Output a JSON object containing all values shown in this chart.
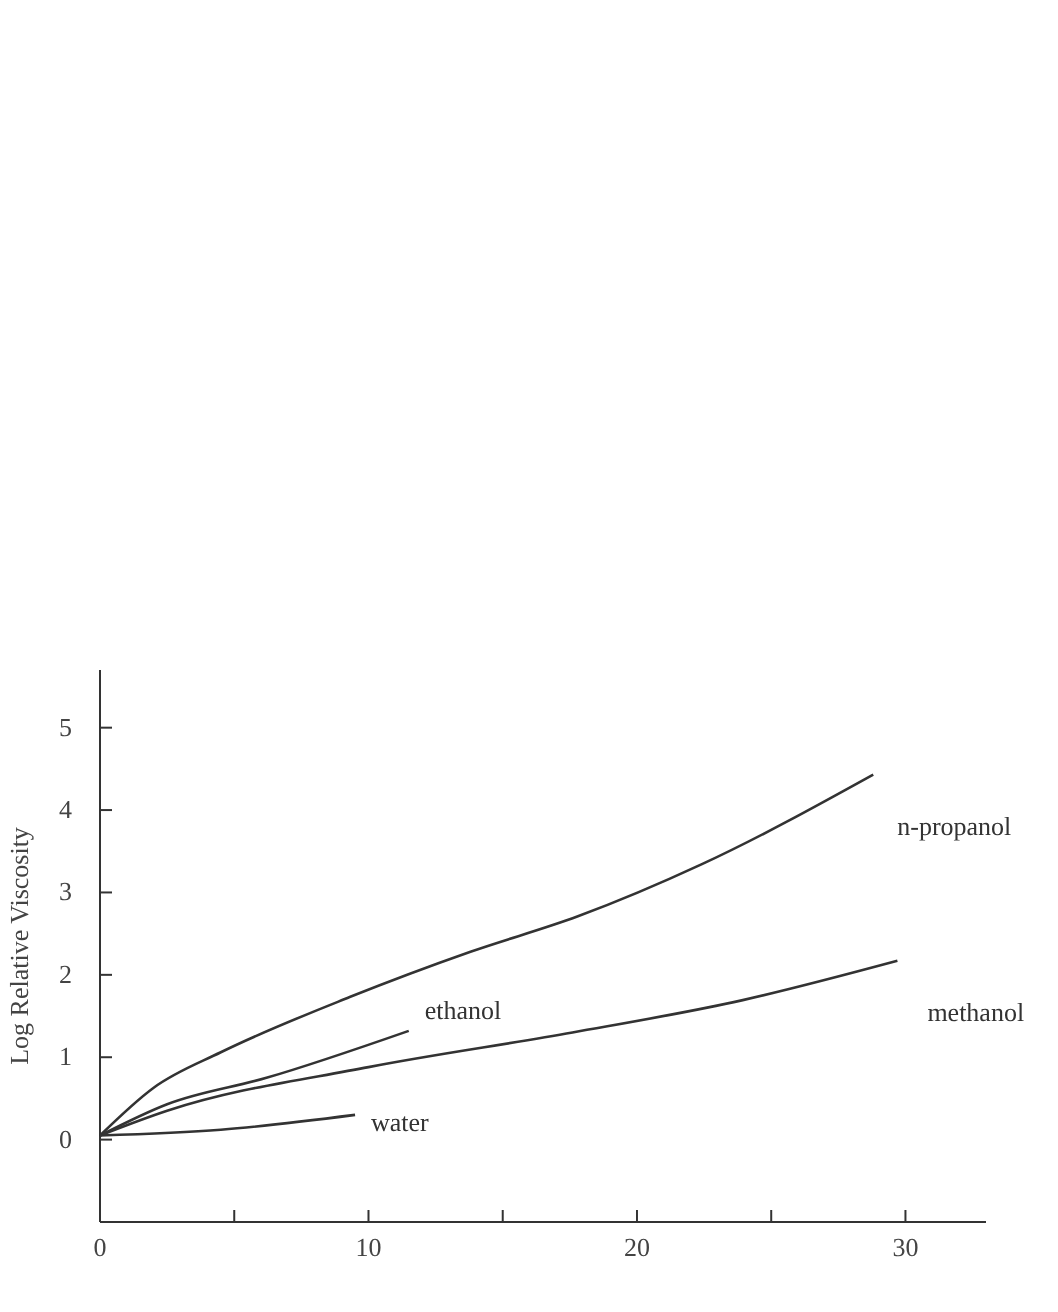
{
  "chart_data": {
    "type": "line",
    "ylabel": "Log Relative Viscosity",
    "xlim": [
      0,
      33
    ],
    "ylim": [
      -1,
      5.7
    ],
    "xticks": [
      0,
      {
        "value": 5,
        "label": null
      },
      10,
      {
        "value": 15,
        "label": null
      },
      20,
      {
        "value": 25,
        "label": null
      },
      30
    ],
    "yticks": [
      0,
      1,
      2,
      3,
      4,
      5
    ],
    "grid": false,
    "marker": "none",
    "line_style": "solid",
    "series": [
      {
        "name": "n-propanol",
        "color": "#333333",
        "x": [
          0,
          2,
          4.5,
          9.3,
          13.8,
          17.8,
          22.4,
          28.8
        ],
        "values": [
          0.05,
          0.63,
          1.06,
          1.73,
          2.28,
          2.71,
          3.34,
          4.43
        ]
      },
      {
        "name": "ethanol",
        "color": "#333333",
        "x": [
          0,
          2.5,
          6.2,
          11.5
        ],
        "values": [
          0.05,
          0.43,
          0.75,
          1.32
        ]
      },
      {
        "name": "methanol",
        "color": "#333333",
        "x": [
          0,
          2.5,
          10,
          17.6,
          23.9,
          29.7
        ],
        "values": [
          0.05,
          0.35,
          0.88,
          1.3,
          1.69,
          2.17
        ]
      },
      {
        "name": "water",
        "color": "#333333",
        "x": [
          0,
          4.5,
          9.5
        ],
        "values": [
          0.05,
          0.12,
          0.3
        ]
      }
    ]
  }
}
